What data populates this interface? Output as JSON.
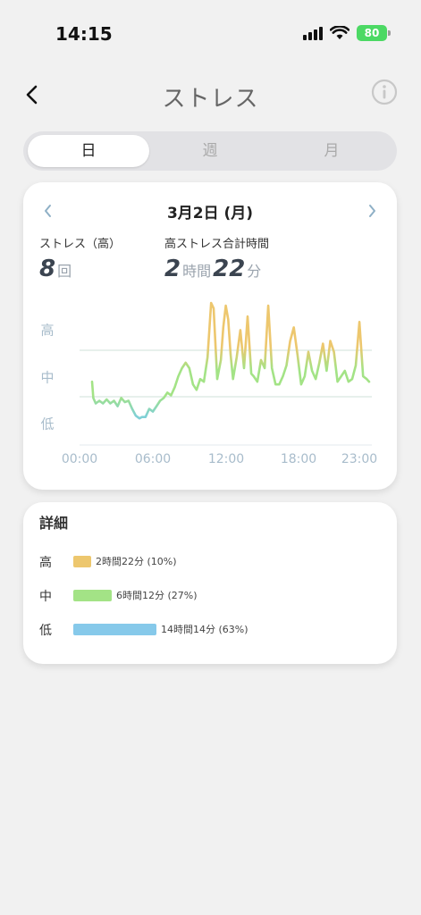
{
  "status_bar": {
    "time": "14:15",
    "battery": "80"
  },
  "header": {
    "title": "ストレス"
  },
  "tabs": [
    {
      "label": "日",
      "active": true
    },
    {
      "label": "週",
      "active": false
    },
    {
      "label": "月",
      "active": false
    }
  ],
  "date": {
    "label": "3月2日 (月)"
  },
  "stats": {
    "count": {
      "label": "ストレス（高）",
      "value": "8",
      "unit": "回"
    },
    "duration": {
      "label": "高ストレス合計時間",
      "hours": "2",
      "hours_unit": "時間",
      "minutes": "22",
      "minutes_unit": "分"
    }
  },
  "colors": {
    "high": "#edc76e",
    "mid": "#a3e386",
    "low": "#86c9ea",
    "line_low": "#7fd0d6",
    "grid": "#cfe0da",
    "axis_text": "#a8bccb"
  },
  "chart_data": {
    "type": "line",
    "y_categories": [
      "高",
      "中",
      "低"
    ],
    "x_tick_labels": [
      "00:00",
      "06:00",
      "12:00",
      "18:00",
      "23:00"
    ],
    "x_ticks_hours": [
      0,
      6,
      12,
      18,
      23
    ],
    "x_range": [
      0,
      24
    ],
    "y_range": [
      0,
      100
    ],
    "grid": true,
    "series": [
      {
        "x": [
          1.0,
          1.1,
          1.3,
          1.6,
          1.9,
          2.2,
          2.5,
          2.8,
          3.1,
          3.4,
          3.7,
          4.0,
          4.3,
          4.6,
          4.9,
          5.1,
          5.4,
          5.7,
          6.0,
          6.3,
          6.6,
          6.9,
          7.2,
          7.5,
          7.8,
          8.1,
          8.4,
          8.7,
          9.0,
          9.3,
          9.6,
          9.9,
          10.2,
          10.5,
          10.8,
          11.0,
          11.3,
          11.6,
          11.8,
          12.0,
          12.2,
          12.4,
          12.6,
          12.9,
          13.2,
          13.5,
          13.8,
          14.1,
          14.3,
          14.6,
          14.9,
          15.2,
          15.5,
          15.8,
          16.1,
          16.4,
          16.7,
          17.0,
          17.3,
          17.6,
          17.9,
          18.2,
          18.5,
          18.8,
          19.1,
          19.4,
          19.7,
          20.0,
          20.3,
          20.6,
          20.9,
          21.2,
          21.5,
          21.8,
          22.1,
          22.4,
          22.7,
          23.0,
          23.3,
          23.6,
          23.8
        ],
        "y": [
          40,
          28,
          24,
          26,
          24,
          27,
          24,
          26,
          22,
          28,
          25,
          26,
          20,
          15,
          13,
          14,
          14,
          20,
          18,
          22,
          26,
          28,
          32,
          30,
          36,
          44,
          50,
          54,
          50,
          38,
          34,
          42,
          40,
          58,
          98,
          94,
          42,
          56,
          80,
          96,
          86,
          60,
          42,
          58,
          78,
          50,
          88,
          46,
          44,
          40,
          56,
          50,
          96,
          50,
          38,
          38,
          44,
          52,
          70,
          80,
          60,
          38,
          44,
          62,
          48,
          42,
          54,
          68,
          48,
          70,
          62,
          40,
          44,
          48,
          40,
          42,
          52,
          84,
          44,
          42,
          40
        ]
      }
    ]
  },
  "details": {
    "title": "詳細",
    "rows": [
      {
        "level": "高",
        "text": "2時間22分 (10%)",
        "ratio": 0.1
      },
      {
        "level": "中",
        "text": "6時間12分 (27%)",
        "ratio": 0.27
      },
      {
        "level": "低",
        "text": "14時間14分 (63%)",
        "ratio": 0.63
      }
    ]
  }
}
